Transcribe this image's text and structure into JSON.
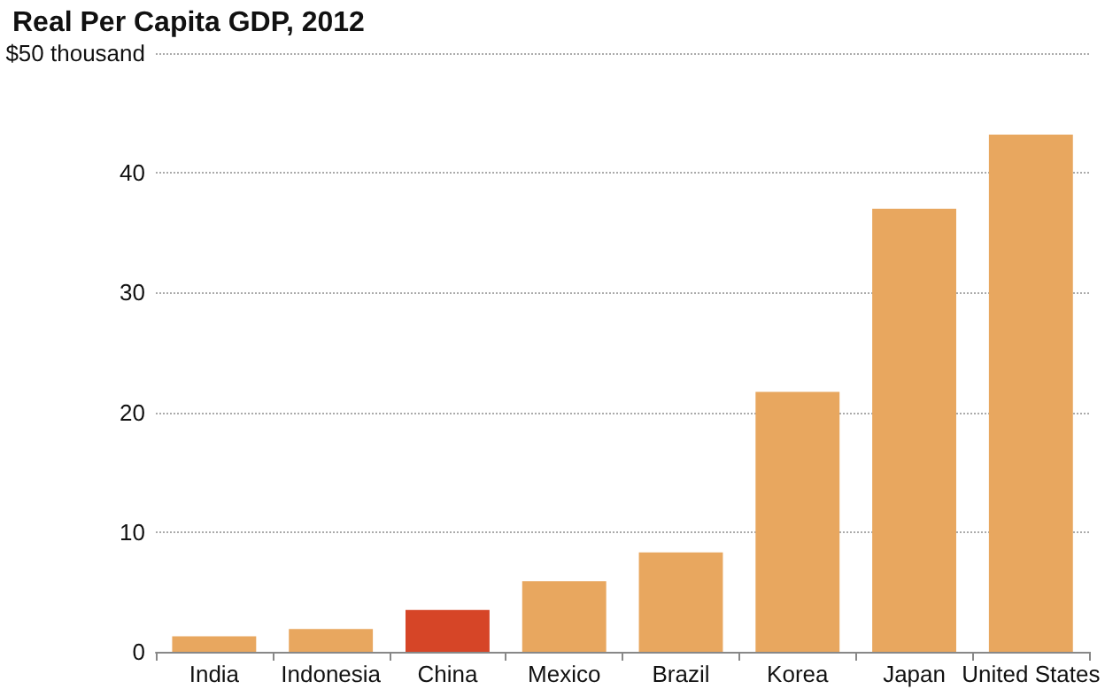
{
  "chart_data": {
    "type": "bar",
    "title": "Real Per Capita GDP, 2012",
    "categories": [
      "India",
      "Indonesia",
      "China",
      "Mexico",
      "Brazil",
      "Korea",
      "Japan",
      "United States"
    ],
    "values": [
      1.3,
      1.9,
      3.5,
      5.9,
      8.3,
      21.7,
      37.0,
      43.2
    ],
    "colors": [
      "#e8a75f",
      "#e8a75f",
      "#d64527",
      "#e8a75f",
      "#e8a75f",
      "#e8a75f",
      "#e8a75f",
      "#e8a75f"
    ],
    "ylim": [
      0,
      50
    ],
    "yticks": [
      0,
      10,
      20,
      30,
      40,
      {
        "value": 50,
        "label": "$50 thousand"
      }
    ],
    "grid": "y"
  }
}
